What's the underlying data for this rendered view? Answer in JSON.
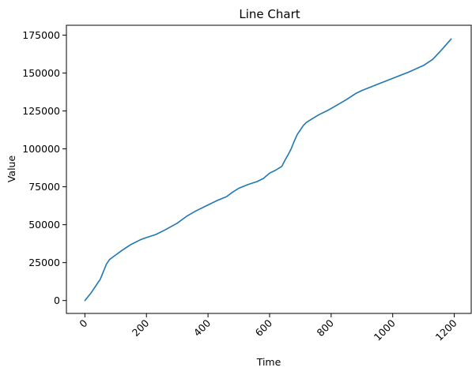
{
  "chart_data": {
    "type": "line",
    "title": "Line Chart",
    "xlabel": "Time",
    "ylabel": "Value",
    "xlim": [
      -60,
      1255
    ],
    "ylim": [
      -8500,
      181500
    ],
    "xticks": [
      0,
      200,
      400,
      600,
      800,
      1000,
      1200
    ],
    "yticks": [
      0,
      25000,
      50000,
      75000,
      100000,
      125000,
      150000,
      175000
    ],
    "x_tick_rotation": 45,
    "grid": false,
    "series": [
      {
        "color": "#1f77b4",
        "x": [
          0,
          10,
          20,
          30,
          40,
          50,
          60,
          70,
          80,
          90,
          100,
          120,
          150,
          180,
          200,
          230,
          260,
          300,
          330,
          360,
          400,
          430,
          460,
          480,
          500,
          530,
          560,
          580,
          600,
          620,
          640,
          650,
          660,
          670,
          680,
          690,
          700,
          710,
          720,
          740,
          760,
          790,
          820,
          850,
          880,
          900,
          950,
          1000,
          1050,
          1100,
          1130,
          1160,
          1190
        ],
        "y": [
          0,
          2500,
          5000,
          8000,
          11000,
          14000,
          19000,
          24000,
          27000,
          28500,
          30000,
          33000,
          37000,
          40000,
          41500,
          43500,
          46500,
          51000,
          55500,
          59000,
          63000,
          66000,
          68500,
          71500,
          74000,
          76500,
          78500,
          80500,
          84000,
          86000,
          88500,
          92500,
          96000,
          100000,
          105000,
          109500,
          112500,
          115500,
          117500,
          120000,
          122500,
          125500,
          129000,
          132500,
          136500,
          138500,
          142500,
          146500,
          150500,
          155000,
          159000,
          165500,
          172500
        ]
      }
    ]
  }
}
